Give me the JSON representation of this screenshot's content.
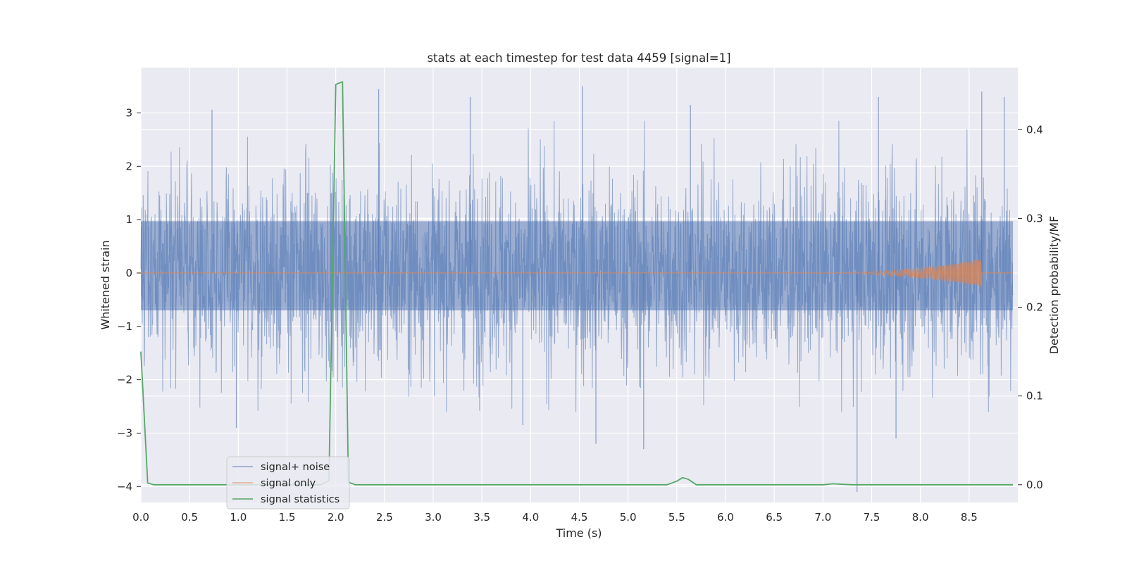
{
  "chart_data": {
    "type": "line",
    "title": "stats at each timestep for test data 4459 [signal=1]",
    "xlabel": "Time (s)",
    "ylabel": "Whitened strain",
    "y2label": "Detection probability/MF",
    "xlim": [
      0.0,
      9.0
    ],
    "ylim": [
      -4.3,
      3.85
    ],
    "y2lim": [
      -0.02,
      0.47
    ],
    "x_ticks": [
      "0.0",
      "0.5",
      "1.0",
      "1.5",
      "2.0",
      "2.5",
      "3.0",
      "3.5",
      "4.0",
      "4.5",
      "5.0",
      "5.5",
      "6.0",
      "6.5",
      "7.0",
      "7.5",
      "8.0",
      "8.5"
    ],
    "y_ticks": [
      "3",
      "2",
      "1",
      "0",
      "−1",
      "−2",
      "−3",
      "−4"
    ],
    "y2_ticks": [
      "0.4",
      "0.3",
      "0.2",
      "0.1",
      "0.0"
    ],
    "grid": true,
    "legend_position": "lower-left",
    "series": [
      {
        "name": "signal+ noise",
        "axis": "left",
        "color": "#4c72b0",
        "description_values": {
          "core_band": [
            -0.7,
            0.97
          ],
          "typical_envelope": [
            -2.0,
            2.2
          ],
          "spikes": [
            {
              "x": 0.73,
              "y": 3.06
            },
            {
              "x": 2.44,
              "y": 3.45
            },
            {
              "x": 3.38,
              "y": 3.3
            },
            {
              "x": 4.53,
              "y": 3.5
            },
            {
              "x": 5.64,
              "y": 3.15
            },
            {
              "x": 7.57,
              "y": 3.3
            },
            {
              "x": 8.63,
              "y": 3.4
            },
            {
              "x": 8.86,
              "y": 3.3
            },
            {
              "x": 0.98,
              "y": -2.9
            },
            {
              "x": 4.67,
              "y": -3.2
            },
            {
              "x": 5.16,
              "y": -3.3
            },
            {
              "x": 7.35,
              "y": -4.1
            },
            {
              "x": 7.75,
              "y": -3.1
            },
            {
              "x": 3.92,
              "y": -2.85
            }
          ]
        }
      },
      {
        "name": "signal only",
        "axis": "left",
        "color": "#dd8452",
        "description_values": {
          "chirp_start": 6.5,
          "chirp_end": 8.63,
          "max_amplitude": 0.27
        }
      },
      {
        "name": "signal statistics",
        "axis": "right",
        "color": "#55a868",
        "x": [
          0.0,
          0.07,
          0.13,
          0.5,
          1.0,
          1.5,
          1.85,
          1.93,
          2.0,
          2.07,
          2.13,
          2.2,
          2.5,
          3.0,
          4.0,
          5.0,
          5.4,
          5.5,
          5.56,
          5.62,
          5.7,
          6.0,
          7.0,
          7.1,
          7.3,
          8.0,
          8.95
        ],
        "y": [
          0.15,
          0.002,
          0.0,
          0.0,
          0.0,
          0.0,
          0.0,
          0.005,
          0.451,
          0.454,
          0.003,
          0.0,
          0.0,
          0.0,
          0.0,
          0.0,
          0.0,
          0.004,
          0.008,
          0.006,
          0.0,
          0.0,
          0.0,
          0.001,
          0.0,
          0.0,
          0.0
        ]
      }
    ]
  }
}
